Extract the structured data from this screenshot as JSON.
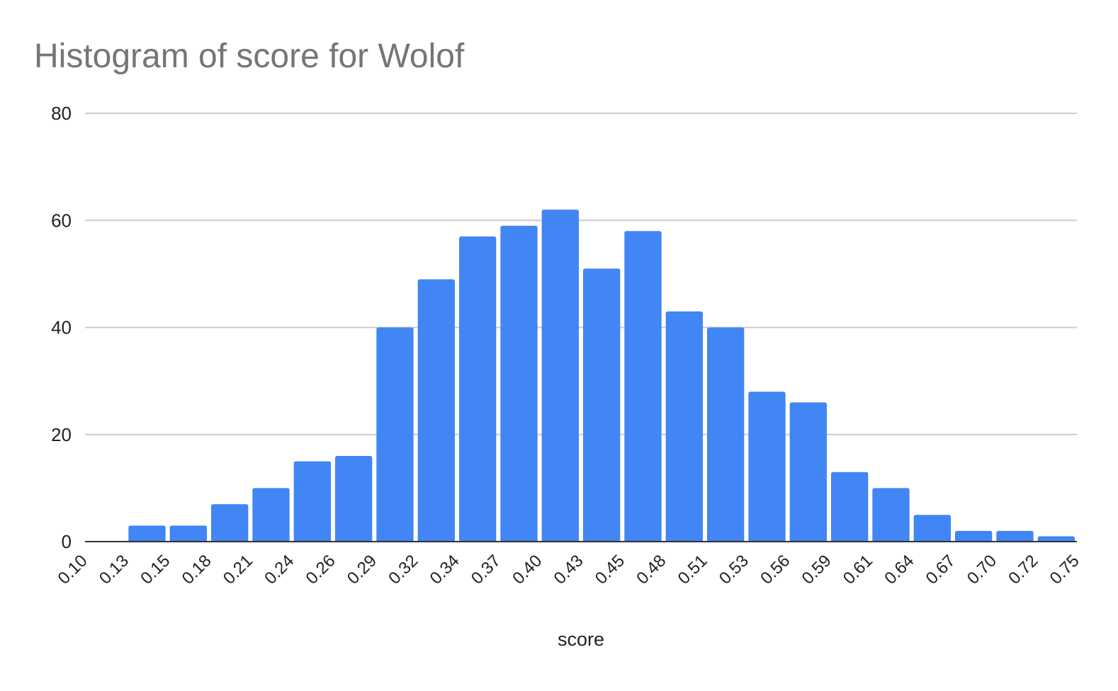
{
  "chart_data": {
    "type": "bar",
    "title": "Histogram of score for Wolof",
    "xlabel": "score",
    "ylabel": "",
    "ylim": [
      0,
      80
    ],
    "yticks": [
      0,
      20,
      40,
      60,
      80
    ],
    "grid": true,
    "legend": "none",
    "bar_color": "#4285F4",
    "x_tick_labels": [
      "0.10",
      "0.13",
      "0.15",
      "0.18",
      "0.21",
      "0.24",
      "0.26",
      "0.29",
      "0.32",
      "0.34",
      "0.37",
      "0.40",
      "0.43",
      "0.45",
      "0.48",
      "0.51",
      "0.53",
      "0.56",
      "0.59",
      "0.61",
      "0.64",
      "0.67",
      "0.70",
      "0.72",
      "0.75"
    ],
    "values": [
      0,
      3,
      3,
      7,
      10,
      15,
      16,
      40,
      49,
      57,
      59,
      62,
      51,
      58,
      43,
      40,
      28,
      26,
      13,
      10,
      5,
      2,
      2,
      1
    ]
  }
}
